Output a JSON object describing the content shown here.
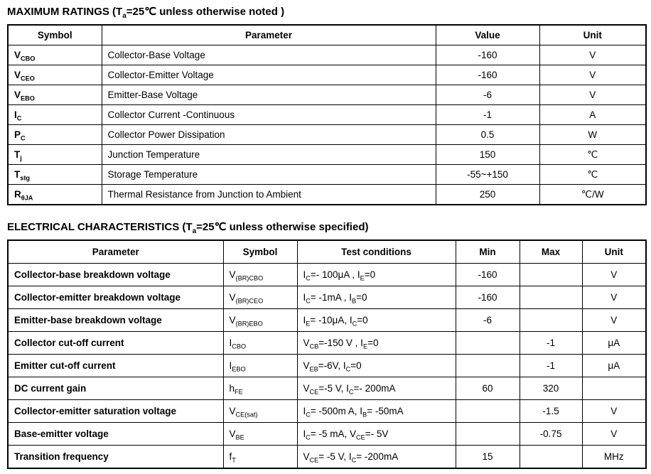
{
  "page": {
    "background": "#ffffff",
    "text_color": "#000000",
    "border_color": "#000000"
  },
  "max_ratings": {
    "title": "MAXIMUM RATINGS (T{a}=25℃ unless otherwise noted )",
    "columns": [
      "Symbol",
      "Parameter",
      "Value",
      "Unit"
    ],
    "rows": [
      {
        "symbol": "V{CBO}",
        "parameter": "Collector-Base Voltage",
        "value": "-160",
        "unit": "V"
      },
      {
        "symbol": "V{CEO}",
        "parameter": "Collector-Emitter Voltage",
        "value": "-160",
        "unit": "V"
      },
      {
        "symbol": "V{EBO}",
        "parameter": "Emitter-Base Voltage",
        "value": "-6",
        "unit": "V"
      },
      {
        "symbol": "I{C}",
        "parameter": "Collector Current -Continuous",
        "value": "-1",
        "unit": "A"
      },
      {
        "symbol": "P{C}",
        "parameter": "Collector Power Dissipation",
        "value": "0.5",
        "unit": "W"
      },
      {
        "symbol": "T{j}",
        "parameter": "Junction Temperature",
        "value": "150",
        "unit": "℃"
      },
      {
        "symbol": "T{stg}",
        "parameter": "Storage Temperature",
        "value": "-55~+150",
        "unit": "℃"
      },
      {
        "symbol": "R{θJA}",
        "parameter": "Thermal Resistance from Junction to Ambient",
        "value": "250",
        "unit": "℃/W"
      }
    ]
  },
  "electrical": {
    "title": "ELECTRICAL CHARACTERISTICS (T{a}=25℃ unless otherwise specified)",
    "columns": [
      "Parameter",
      "Symbol",
      "Test conditions",
      "Min",
      "Max",
      "Unit"
    ],
    "rows": [
      {
        "parameter": "Collector-base breakdown voltage",
        "symbol": "V{(BR)CBO}",
        "conditions": "I{C}=- 100μA , I{E}=0",
        "min": "-160",
        "max": "",
        "unit": "V"
      },
      {
        "parameter": "Collector-emitter breakdown voltage",
        "symbol": "V{(BR)CEO}",
        "conditions": "I{C}= -1mA , I{B}=0",
        "min": "-160",
        "max": "",
        "unit": "V"
      },
      {
        "parameter": "Emitter-base breakdown voltage",
        "symbol": "V{(BR)EBO}",
        "conditions": "I{E}= -10μA, I{C}=0",
        "min": "-6",
        "max": "",
        "unit": "V"
      },
      {
        "parameter": "Collector cut-off current",
        "symbol": "I{CBO}",
        "conditions": "V{CB}=-150 V , I{E}=0",
        "min": "",
        "max": "-1",
        "unit": "μA"
      },
      {
        "parameter": "Emitter cut-off current",
        "symbol": "I{EBO}",
        "conditions": "V{EB}=-6V, I{C}=0",
        "min": "",
        "max": "-1",
        "unit": "μA"
      },
      {
        "parameter": "DC current gain",
        "symbol": "h{FE}",
        "conditions": "V{CE}=-5 V, I{C}=- 200mA",
        "min": "60",
        "max": "320",
        "unit": ""
      },
      {
        "parameter": "Collector-emitter saturation voltage",
        "symbol": "V{CE(sat)}",
        "conditions": "I{C}= -500m A, I{B}= -50mA",
        "min": "",
        "max": "-1.5",
        "unit": "V"
      },
      {
        "parameter": "Base-emitter voltage",
        "symbol": "V{BE}",
        "conditions": "I{C}= -5 mA, V{CE}=- 5V",
        "min": "",
        "max": "-0.75",
        "unit": "V"
      },
      {
        "parameter": "Transition frequency",
        "symbol": "f{T}",
        "conditions": "V{CE}= -5 V, I{C}= -200mA",
        "min": "15",
        "max": "",
        "unit": "MHz"
      }
    ]
  }
}
